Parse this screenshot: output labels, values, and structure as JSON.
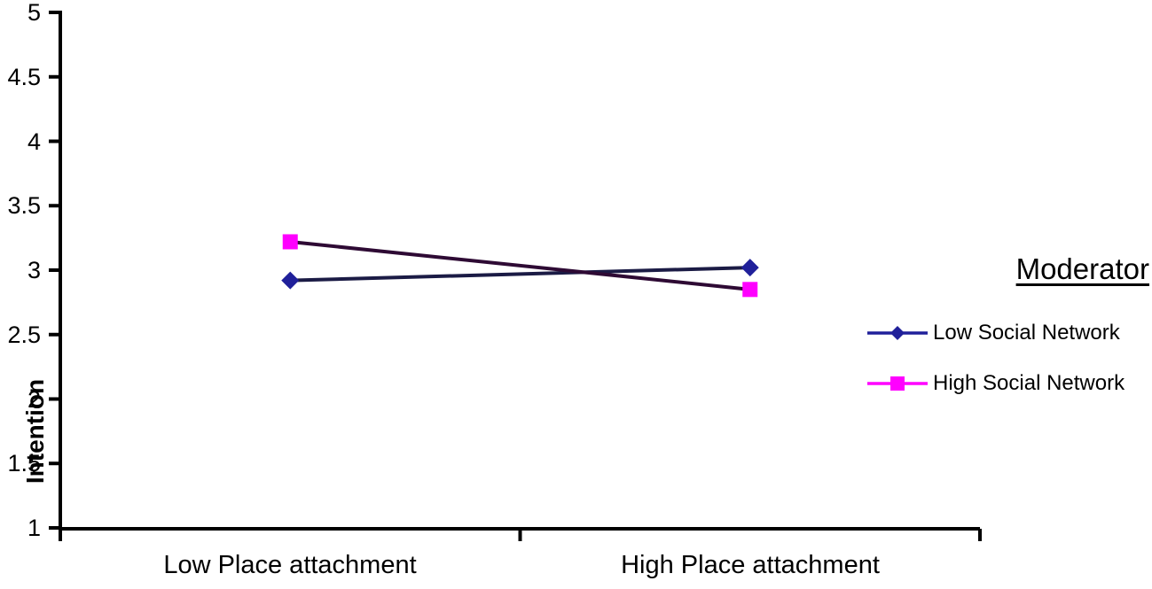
{
  "chart_data": {
    "type": "line",
    "categories": [
      "Low Place attachment",
      "High Place attachment"
    ],
    "series": [
      {
        "name": "Low Social Network",
        "values": [
          2.92,
          3.02
        ],
        "marker": "diamond",
        "marker_color": "#20209a",
        "line_color": "#1b1b45"
      },
      {
        "name": "High Social Network",
        "values": [
          3.22,
          2.85
        ],
        "marker": "square",
        "marker_color": "#ff00ff",
        "line_color": "#2e0a34"
      }
    ],
    "xlabel": "",
    "ylabel": "Intention",
    "ylim": [
      1,
      5
    ],
    "yticks": [
      1,
      1.5,
      2,
      2.5,
      3,
      3.5,
      4,
      4.5,
      5
    ],
    "ytick_labels": [
      "1",
      "1.5",
      "2",
      "2.5",
      "3",
      "3.5",
      "4",
      "4.5",
      "5"
    ],
    "legend_title": "Moderator",
    "legend_position": "right",
    "grid": false,
    "axis_color": "#000000",
    "background_color": "#ffffff"
  }
}
